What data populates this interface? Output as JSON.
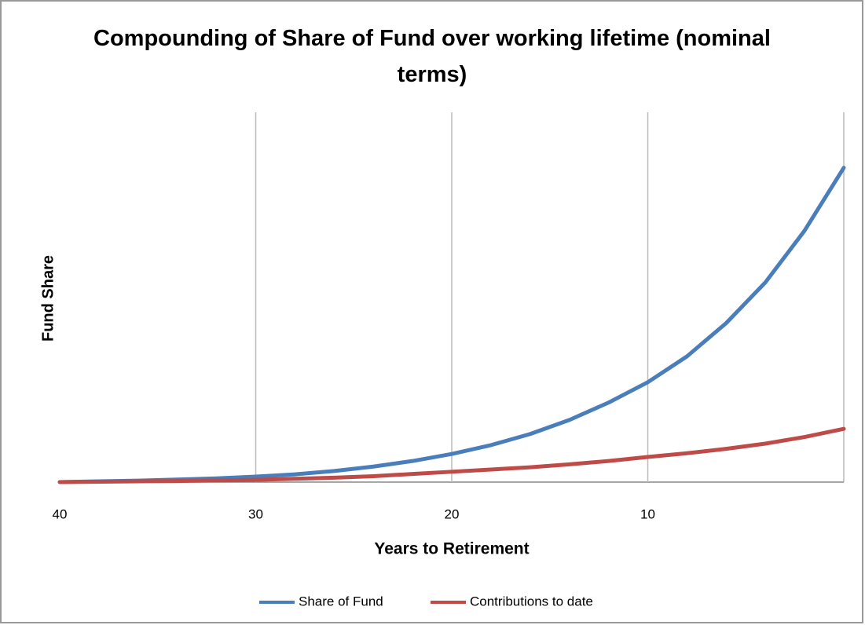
{
  "chart_data": {
    "type": "line",
    "title": "Compounding of Share of Fund over working lifetime (nominal terms)",
    "x_label": "Years to Retirement",
    "y_label": "Fund Share",
    "x": [
      40,
      38,
      36,
      34,
      32,
      30,
      28,
      26,
      24,
      22,
      20,
      18,
      16,
      14,
      12,
      10,
      8,
      6,
      4,
      2,
      0
    ],
    "series": [
      {
        "name": "Share of Fund",
        "color": "#4a7ebb",
        "values": [
          0,
          0.2,
          0.4,
          0.7,
          1.0,
          1.5,
          2.1,
          3.0,
          4.2,
          5.7,
          7.6,
          10.0,
          13.0,
          16.8,
          21.5,
          27.0,
          34,
          43,
          54,
          68,
          85
        ]
      },
      {
        "name": "Contributions to date",
        "color": "#be4b48",
        "values": [
          0,
          0.1,
          0.2,
          0.3,
          0.45,
          0.6,
          0.9,
          1.2,
          1.6,
          2.2,
          2.8,
          3.4,
          4.0,
          4.8,
          5.7,
          6.8,
          7.8,
          9.0,
          10.4,
          12.2,
          14.4
        ]
      }
    ],
    "xlim": [
      40,
      0
    ],
    "xticks": [
      40,
      30,
      20,
      10
    ],
    "ylim": [
      0,
      100
    ],
    "grid": true,
    "legend": "bottom"
  }
}
